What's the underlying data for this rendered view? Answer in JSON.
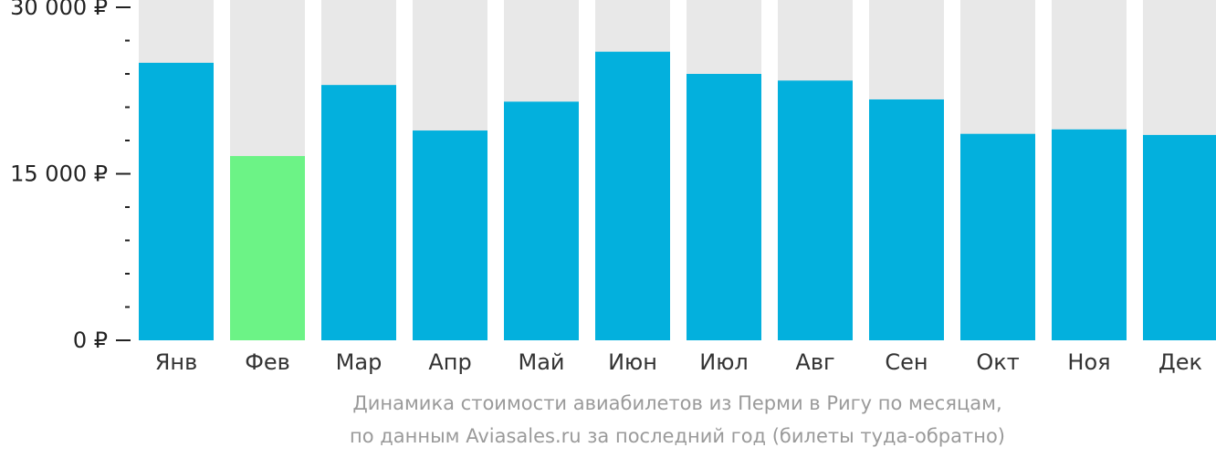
{
  "chart_data": {
    "type": "bar",
    "categories": [
      "Янв",
      "Фев",
      "Мар",
      "Апр",
      "Май",
      "Июн",
      "Июл",
      "Авг",
      "Сен",
      "Окт",
      "Ноя",
      "Дек"
    ],
    "values": [
      25000,
      16600,
      23000,
      18900,
      21500,
      26000,
      24000,
      23400,
      21700,
      18600,
      19000,
      18500
    ],
    "highlight_index": 1,
    "ylim": [
      0,
      30000
    ],
    "y_ticks": [
      0,
      15000,
      30000
    ],
    "y_tick_labels": [
      "0 ₽",
      "15 000 ₽",
      "30 000 ₽"
    ],
    "minor_ticks_between_labels": 4,
    "colors": {
      "bar": "#03b0dd",
      "highlight": "#6cf386",
      "background_bar": "#e8e8e8",
      "axis": "#222222",
      "caption": "#9a9a9a"
    }
  },
  "caption": {
    "line1": "Динамика стоимости авиабилетов из Перми в Ригу по месяцам,",
    "line2": "по данным Aviasales.ru за последний год (билеты туда-обратно)"
  }
}
